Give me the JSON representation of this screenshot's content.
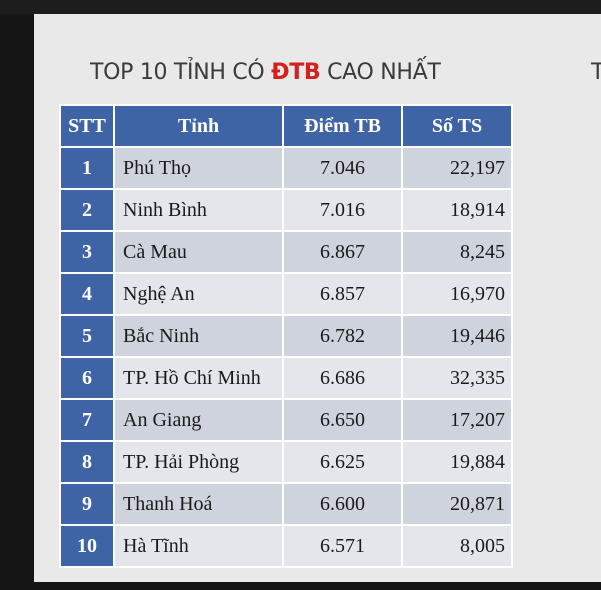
{
  "title": {
    "prefix": "TOP 10 TỈNH CÓ ",
    "highlight": "ĐTB",
    "suffix": " CAO NHẤT",
    "highlight_color": "#d42020"
  },
  "edge_text": "T",
  "table": {
    "header_color": "#3f64a6",
    "headers": [
      "STT",
      "Tỉnh",
      "Điểm TB",
      "Số TS"
    ],
    "rows": [
      {
        "stt": "1",
        "tinh": "Phú Thọ",
        "diem": "7.046",
        "sots": "22,197"
      },
      {
        "stt": "2",
        "tinh": "Ninh Bình",
        "diem": "7.016",
        "sots": "18,914"
      },
      {
        "stt": "3",
        "tinh": "Cà Mau",
        "diem": "6.867",
        "sots": "8,245"
      },
      {
        "stt": "4",
        "tinh": "Nghệ An",
        "diem": "6.857",
        "sots": "16,970"
      },
      {
        "stt": "5",
        "tinh": "Bắc Ninh",
        "diem": "6.782",
        "sots": "19,446"
      },
      {
        "stt": "6",
        "tinh": "TP. Hồ Chí Minh",
        "diem": "6.686",
        "sots": "32,335"
      },
      {
        "stt": "7",
        "tinh": "An Giang",
        "diem": "6.650",
        "sots": "17,207"
      },
      {
        "stt": "8",
        "tinh": "TP. Hải Phòng",
        "diem": "6.625",
        "sots": "19,884"
      },
      {
        "stt": "9",
        "tinh": "Thanh Hoá",
        "diem": "6.600",
        "sots": "20,871"
      },
      {
        "stt": "10",
        "tinh": "Hà Tĩnh",
        "diem": "6.571",
        "sots": "8,005"
      }
    ]
  }
}
